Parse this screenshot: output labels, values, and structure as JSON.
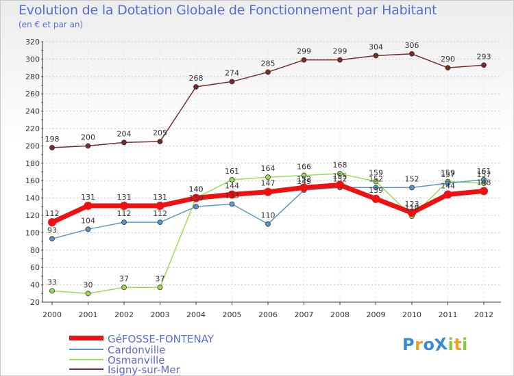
{
  "title": "Evolution de la Dotation Globale de Fonctionnement par Habitant",
  "subtitle": "(en € et par an)",
  "chart_data": {
    "type": "line",
    "title": "Evolution de la Dotation Globale de Fonctionnement par Habitant",
    "subtitle": "(en € et par an)",
    "xlabel": "",
    "ylabel": "",
    "x": [
      "2000",
      "2001",
      "2002",
      "2003",
      "2004",
      "2005",
      "2006",
      "2007",
      "2008",
      "2009",
      "2010",
      "2011",
      "2012"
    ],
    "ylim": [
      20,
      320
    ],
    "yticks": [
      20,
      40,
      60,
      80,
      100,
      120,
      140,
      160,
      180,
      200,
      220,
      240,
      260,
      280,
      300,
      320
    ],
    "grid": "horizontal",
    "legend_position": "bottom-left",
    "series": [
      {
        "name": "Isigny-sur-Mer",
        "color": "#7a2a2a",
        "values": [
          198,
          200,
          204,
          205,
          268,
          274,
          285,
          299,
          299,
          304,
          306,
          290,
          293
        ],
        "labels": [
          "198",
          "200",
          "204",
          "205",
          "268",
          "274",
          "285",
          "299",
          "299",
          "304",
          "306",
          "290",
          "293"
        ]
      },
      {
        "name": "Osmanville",
        "color": "#99dd55",
        "values": [
          33,
          30,
          37,
          37,
          140,
          161,
          164,
          166,
          168,
          159,
          119,
          159,
          157
        ],
        "labels": [
          "33",
          "30",
          "37",
          "37",
          "140",
          "161",
          "164",
          "166",
          "168",
          "159",
          "119",
          "159",
          "157"
        ]
      },
      {
        "name": "Cardonville",
        "color": "#5a96cc",
        "values": [
          93,
          104,
          112,
          112,
          130,
          133,
          110,
          149,
          152,
          152,
          152,
          157,
          161
        ],
        "labels": [
          "93",
          "104",
          "112",
          "112",
          "130",
          "133",
          "110",
          "149",
          "152",
          "152",
          "152",
          "157",
          "161"
        ]
      },
      {
        "name": "GéFOSSE-FONTENAY",
        "color": "#ee1111",
        "values": [
          112,
          131,
          131,
          131,
          140,
          144,
          147,
          152,
          155,
          139,
          123,
          144,
          148
        ],
        "labels": [
          "112",
          "131",
          "131",
          "131",
          "140",
          "144",
          "147",
          "152",
          "155",
          "139",
          "123",
          "144",
          "148"
        ]
      }
    ]
  },
  "legend": [
    {
      "label": "GéFOSSE-FONTENAY",
      "color": "#ee1111"
    },
    {
      "label": "Cardonville",
      "color": "#5a96cc"
    },
    {
      "label": "Osmanville",
      "color": "#99dd55"
    },
    {
      "label": "Isigny-sur-Mer",
      "color": "#7a2a2a"
    }
  ],
  "logo": {
    "text": "ProXiti",
    "letters": [
      "P",
      "r",
      "o",
      "X",
      "i",
      "t",
      "i"
    ],
    "colors": [
      "#3a8ad8",
      "#f0a020",
      "#3a8ad8",
      "#3a8ad8",
      "#88c83a",
      "#f0a020",
      "#88c83a"
    ]
  }
}
